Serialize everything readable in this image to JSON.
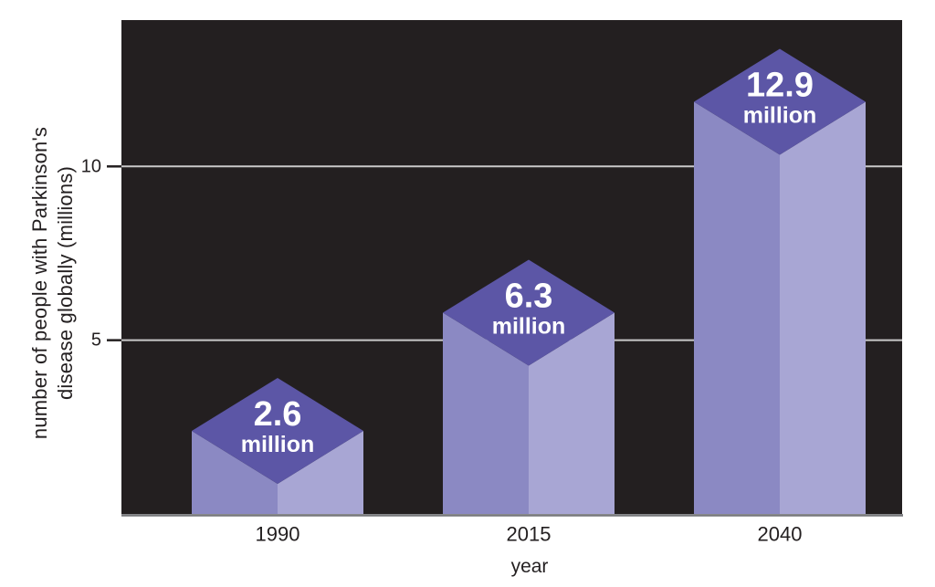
{
  "chart_data": {
    "type": "bar",
    "style": "3d-isometric-columns",
    "title": "",
    "categories": [
      "1990",
      "2015",
      "2040"
    ],
    "values": [
      2.6,
      6.3,
      12.9
    ],
    "value_labels": [
      "2.6",
      "6.3",
      "12.9"
    ],
    "unit_label": "million",
    "xlabel": "year",
    "ylabel": "number of people with Parkinson's disease globally (millions)",
    "ylabel_lines": [
      "number of people with Parkinson's",
      "disease globally (millions)"
    ],
    "yticks": [
      5,
      10
    ],
    "ytick_labels": [
      "5",
      "10"
    ],
    "ylim": [
      0,
      14.2
    ],
    "grid": "horizontal",
    "legend": "none",
    "colors": {
      "page_background": "#ffffff",
      "plot_background": "#231f20",
      "gridline": "#c9c9c9",
      "baseline_strip": "#77787b",
      "bar_top": "#5c56a6",
      "bar_left": "#8b89c3",
      "bar_right": "#a8a6d4",
      "axis_text": "#231f20",
      "tick_mark": "#231f20",
      "bar_label_text": "#ffffff"
    }
  }
}
